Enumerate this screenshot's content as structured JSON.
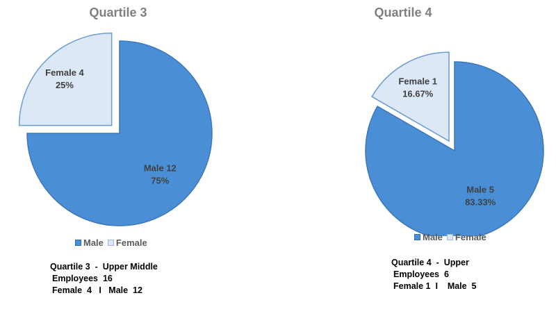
{
  "chart_data": [
    {
      "type": "pie",
      "title": "Quartile 3",
      "slices": [
        {
          "name": "Male",
          "count": 12,
          "percent": 75,
          "label_name": "Male 12",
          "label_pct": "75%",
          "color": "#4a8fd6",
          "exploded": false
        },
        {
          "name": "Female",
          "count": 4,
          "percent": 25,
          "label_name": "Female 4",
          "label_pct": "25%",
          "color": "#dce8f6",
          "exploded": true
        }
      ],
      "legend": [
        "Male",
        "Female"
      ],
      "legend_position": "bottom",
      "summary": [
        "Quartile 3  -  Upper Middle",
        "Employees  16",
        "Female  4   I   Male  12"
      ]
    },
    {
      "type": "pie",
      "title": "Quartile 4",
      "slices": [
        {
          "name": "Male",
          "count": 5,
          "percent": 83.33,
          "label_name": "Male 5",
          "label_pct": "83.33%",
          "color": "#4a8fd6",
          "exploded": false
        },
        {
          "name": "Female",
          "count": 1,
          "percent": 16.67,
          "label_name": "Female 1",
          "label_pct": "16.67%",
          "color": "#dce8f6",
          "exploded": true
        }
      ],
      "legend": [
        "Male",
        "Female"
      ],
      "legend_position": "bottom",
      "summary": [
        "Quartile 4  -  Upper",
        "Employees  6",
        "Female 1  I    Male  5"
      ]
    }
  ]
}
